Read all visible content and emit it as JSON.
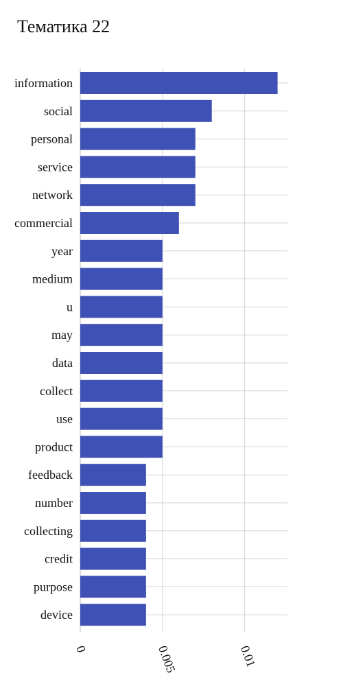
{
  "chart_data": {
    "type": "bar",
    "orientation": "horizontal",
    "title": "Тематика 22",
    "categories": [
      "information",
      "social",
      "personal",
      "service",
      "network",
      "commercial",
      "year",
      "medium",
      "u",
      "may",
      "data",
      "collect",
      "use",
      "product",
      "feedback",
      "number",
      "collecting",
      "credit",
      "purpose",
      "device"
    ],
    "values": [
      0.012,
      0.008,
      0.007,
      0.007,
      0.007,
      0.006,
      0.005,
      0.005,
      0.005,
      0.005,
      0.005,
      0.005,
      0.005,
      0.005,
      0.004,
      0.004,
      0.004,
      0.004,
      0.004,
      0.004
    ],
    "xlim": [
      0,
      0.0126
    ],
    "xticks": [
      0,
      0.005,
      0.01
    ],
    "xtick_labels": [
      "0",
      "0.005",
      "0.01"
    ],
    "xlabel": "",
    "ylabel": "",
    "grid": true,
    "legend": "none",
    "bar_color": "#3f51b5",
    "grid_color": "#d3d3d3"
  }
}
